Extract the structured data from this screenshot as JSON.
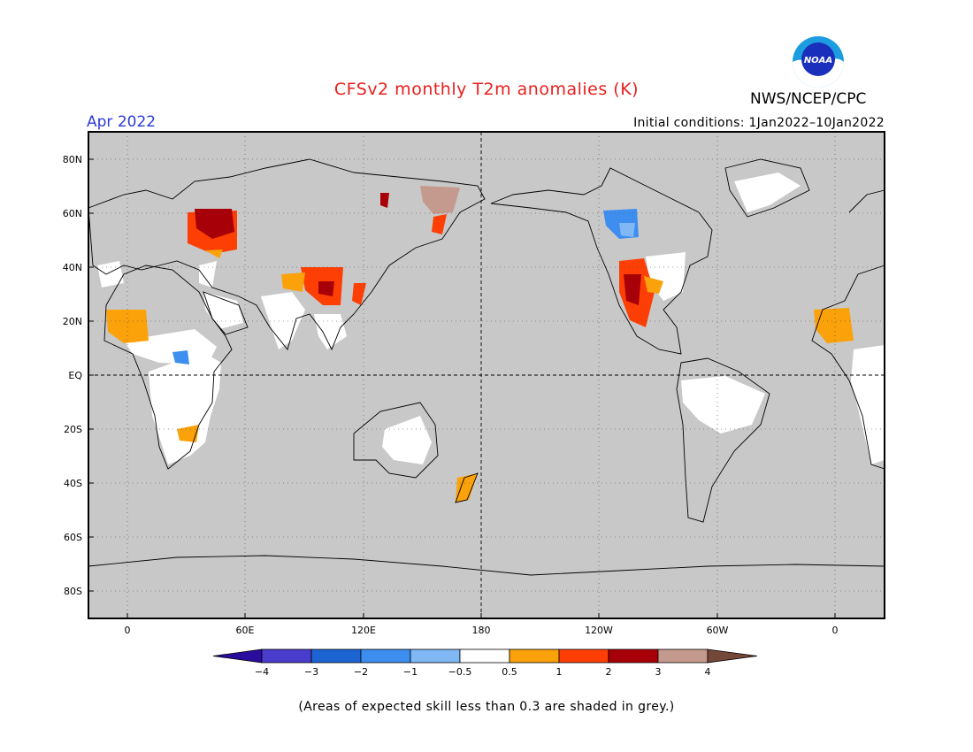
{
  "title": "CFSv2 monthly T2m anomalies (K)",
  "month": "Apr 2022",
  "initial_conditions": "Initial conditions: 1Jan2022–10Jan2022",
  "agency": "NWS/NCEP/CPC",
  "logo_text": "NOAA",
  "footnote": "(Areas of expected skill less than 0.3 are shaded in grey.)",
  "colors": {
    "title": "#e8201e",
    "month": "#2b3bd6",
    "grey_mask": "#c8c8c8",
    "ocean_land": "#ffffff"
  },
  "lat_labels": [
    "80N",
    "60N",
    "40N",
    "20N",
    "EQ",
    "20S",
    "40S",
    "60S",
    "80S"
  ],
  "lon_labels": [
    "0",
    "60E",
    "120E",
    "180",
    "120W",
    "60W",
    "0"
  ],
  "colorbar": {
    "ticks": [
      "−4",
      "−3",
      "−2",
      "−1",
      "−0.5",
      "0.5",
      "1",
      "2",
      "3",
      "4"
    ],
    "colors": [
      "#2a0d9e",
      "#4a3ccc",
      "#1c64d4",
      "#3e8ef0",
      "#7fb8f4",
      "#ffffff",
      "#fba10a",
      "#fd3f05",
      "#a80008",
      "#c4998e",
      "#744838"
    ]
  }
}
